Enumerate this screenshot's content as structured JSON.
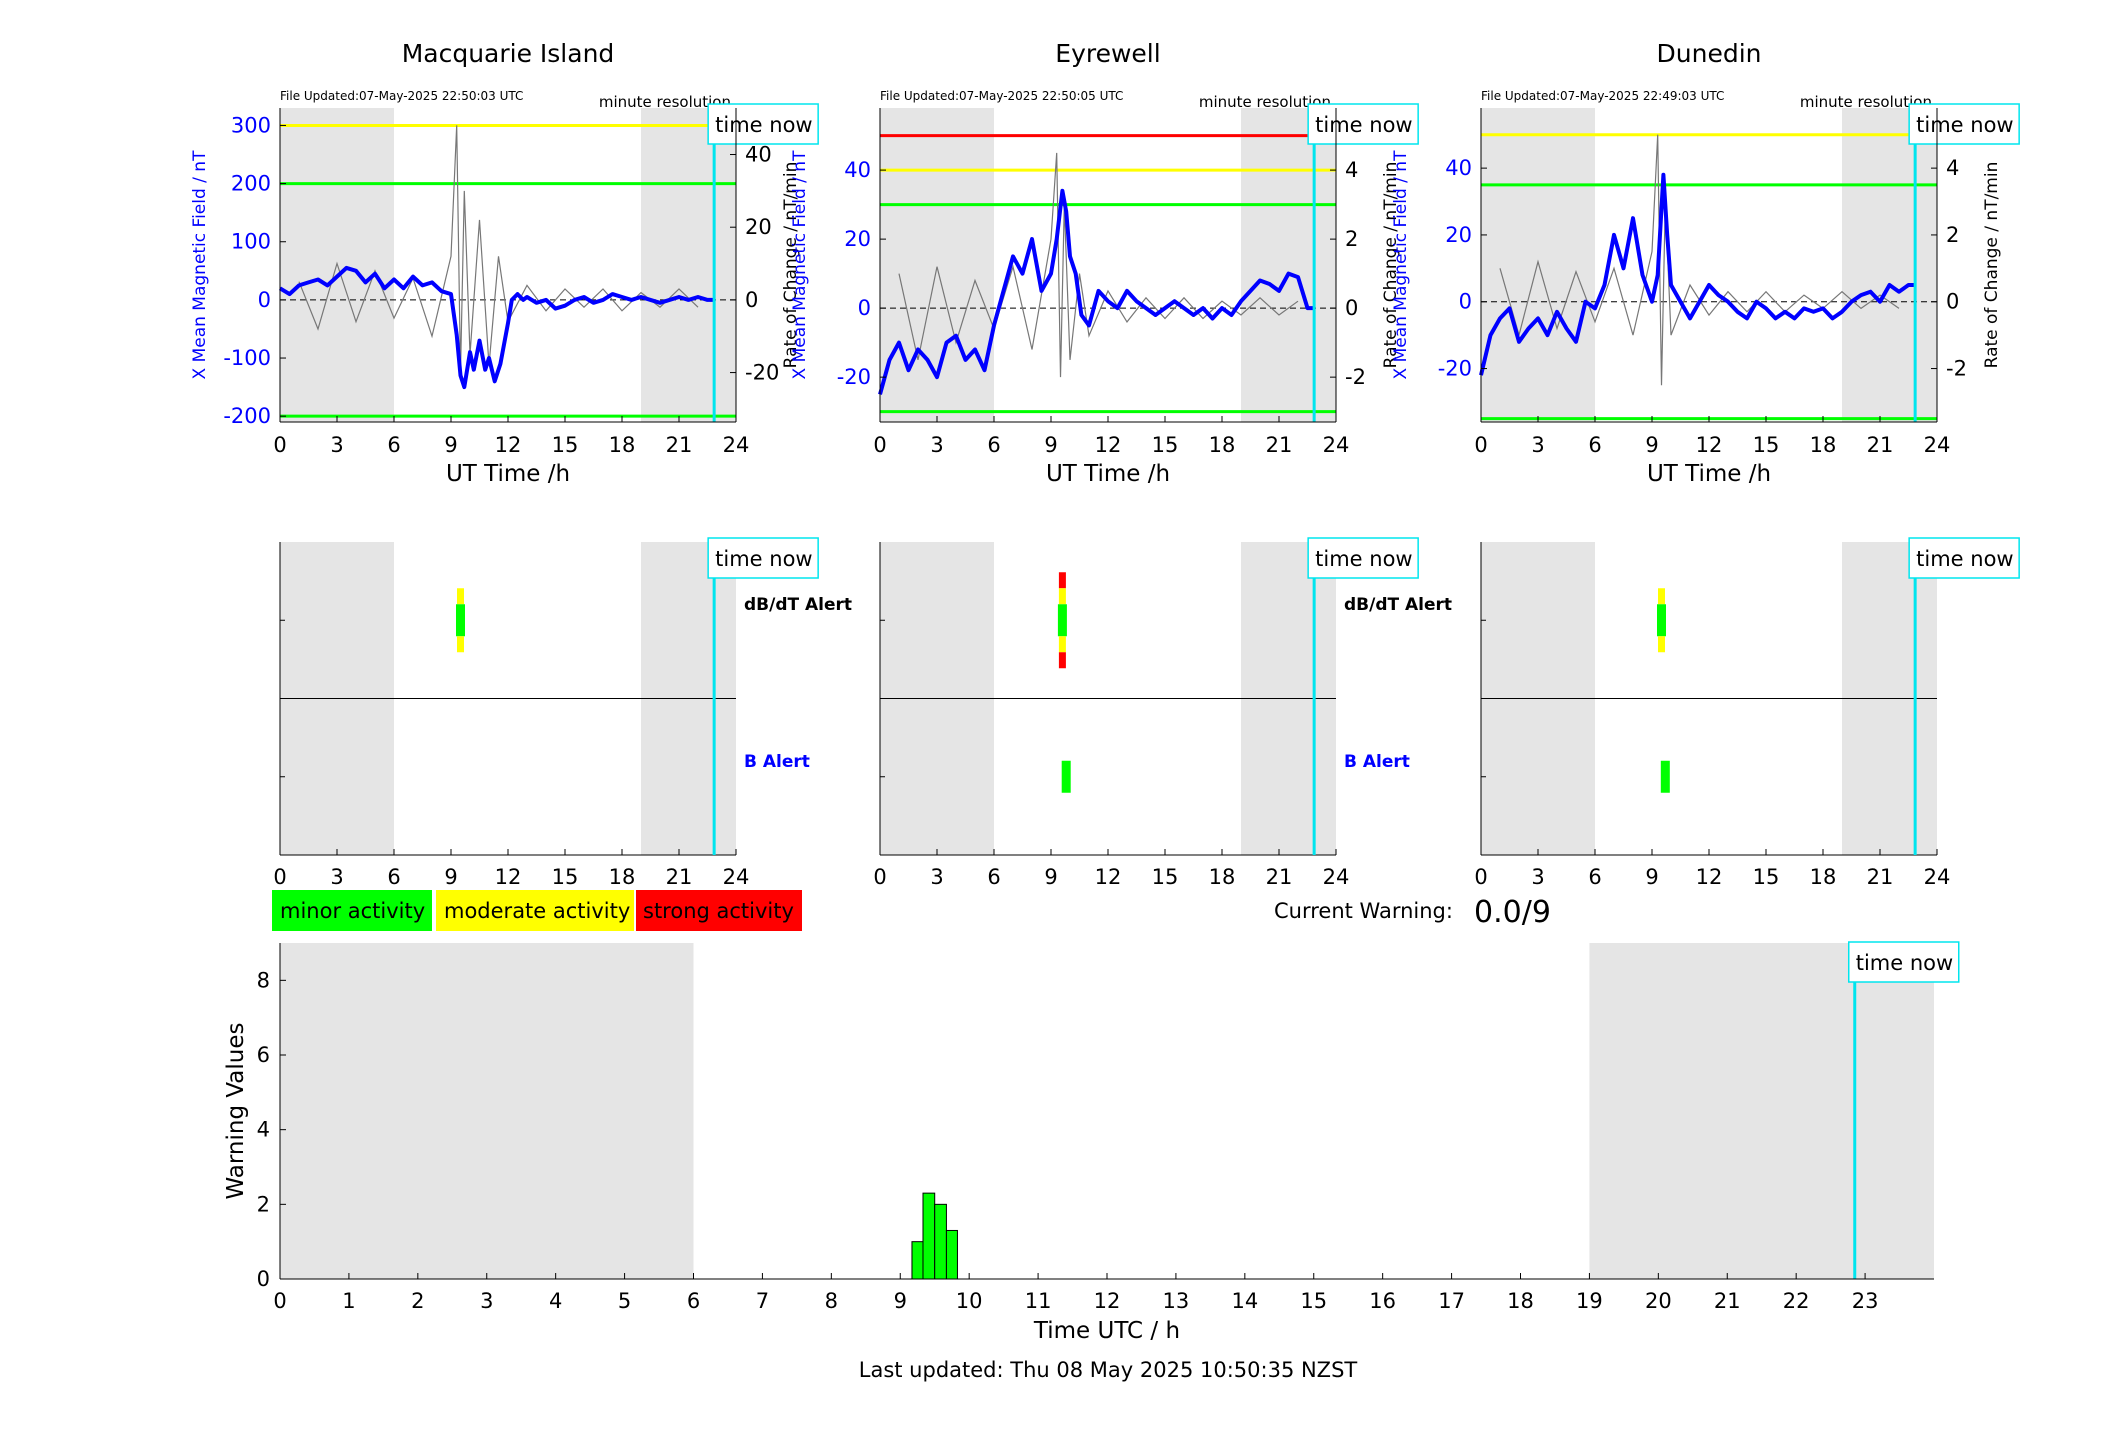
{
  "footer": {
    "last_updated": "Last updated: Thu 08 May 2025 10:50:35 NZST"
  },
  "legend": [
    {
      "label": "minor activity",
      "color": "#00ff00"
    },
    {
      "label": "moderate activity",
      "color": "#ffff00"
    },
    {
      "label": "strong activity",
      "color": "#ff0000"
    }
  ],
  "current_warning": {
    "label": "Current Warning:",
    "value": "0.0/9"
  },
  "common": {
    "time_now_label": "time now",
    "minute_resolution": "minute resolution",
    "ut_xlabel": "UT Time /h",
    "left_ylabel": "X Mean Magnetic Field / nT",
    "right_ylabel": "Rate of Change / nT/min",
    "dbdt_alert_label": "dB/dT Alert",
    "b_alert_label": "B Alert",
    "x_ticks": [
      0,
      3,
      6,
      9,
      12,
      15,
      18,
      21,
      24
    ],
    "night_shading_hours": [
      [
        0,
        6
      ],
      [
        19,
        24
      ]
    ],
    "time_now_hour": 22.85
  },
  "chart_data": [
    {
      "type": "line",
      "station": "Macquarie Island",
      "file_updated": "File Updated:07-May-2025 22:50:03 UTC",
      "xlim": [
        0,
        24
      ],
      "ylim": [
        -210,
        330
      ],
      "yticks": [
        -200,
        -100,
        0,
        100,
        200,
        300
      ],
      "y2lim": [
        -33.6,
        52.8
      ],
      "y2ticks": [
        -20,
        0,
        20,
        40
      ],
      "thresholds": [
        {
          "value": 300,
          "color": "#ffff00"
        },
        {
          "value": 200,
          "color": "#00ff00"
        },
        {
          "value": -200,
          "color": "#00ff00"
        }
      ],
      "series": [
        {
          "x": [
            0,
            0.5,
            1,
            1.5,
            2,
            2.5,
            3,
            3.5,
            4,
            4.5,
            5,
            5.5,
            6,
            6.5,
            7,
            7.5,
            8,
            8.5,
            9,
            9.3,
            9.5,
            9.7,
            10,
            10.2,
            10.5,
            10.8,
            11,
            11.3,
            11.6,
            12,
            12.2,
            12.5,
            12.8,
            13,
            13.5,
            14,
            14.5,
            15,
            15.5,
            16,
            16.5,
            17,
            17.5,
            18,
            18.5,
            19,
            19.5,
            20,
            20.5,
            21,
            21.5,
            22,
            22.5,
            22.85
          ],
          "values": [
            20,
            10,
            25,
            30,
            35,
            25,
            40,
            55,
            50,
            30,
            45,
            20,
            35,
            20,
            40,
            25,
            30,
            15,
            10,
            -60,
            -130,
            -150,
            -90,
            -120,
            -70,
            -120,
            -100,
            -140,
            -110,
            -40,
            0,
            10,
            0,
            5,
            -5,
            0,
            -15,
            -10,
            0,
            5,
            -5,
            0,
            10,
            5,
            0,
            5,
            0,
            -5,
            0,
            5,
            0,
            5,
            0,
            0
          ]
        },
        {
          "x": [
            1,
            2,
            3,
            4,
            5,
            6,
            7,
            8,
            9,
            9.3,
            9.5,
            9.7,
            10,
            10.5,
            11,
            11.5,
            12,
            13,
            14,
            15,
            16,
            17,
            18,
            19,
            20,
            21,
            22
          ],
          "values": [
            5,
            -8,
            10,
            -6,
            8,
            -5,
            6,
            -10,
            12,
            48,
            -20,
            30,
            -15,
            22,
            -18,
            12,
            -6,
            4,
            -3,
            3,
            -2,
            3,
            -3,
            2,
            -2,
            3,
            -2
          ]
        }
      ],
      "dbdt_alert": {
        "x": 9.5,
        "levels": [
          "moderate",
          "minor",
          "moderate"
        ]
      },
      "b_alert": null
    },
    {
      "type": "line",
      "station": "Eyrewell",
      "file_updated": "File Updated:07-May-2025 22:50:05 UTC",
      "xlim": [
        0,
        24
      ],
      "ylim": [
        -33,
        58
      ],
      "yticks": [
        -20,
        0,
        20,
        40
      ],
      "y2lim": [
        -3.3,
        5.8
      ],
      "y2ticks": [
        -2,
        0,
        2,
        4
      ],
      "thresholds": [
        {
          "value": 50,
          "color": "#ff0000"
        },
        {
          "value": 40,
          "color": "#ffff00"
        },
        {
          "value": 30,
          "color": "#00ff00"
        },
        {
          "value": -30,
          "color": "#00ff00"
        }
      ],
      "series": [
        {
          "x": [
            0,
            0.5,
            1,
            1.5,
            2,
            2.5,
            3,
            3.5,
            4,
            4.5,
            5,
            5.5,
            6,
            6.5,
            7,
            7.5,
            8,
            8.5,
            9,
            9.3,
            9.6,
            9.8,
            10,
            10.3,
            10.6,
            11,
            11.5,
            12,
            12.5,
            13,
            13.5,
            14,
            14.5,
            15,
            15.5,
            16,
            16.5,
            17,
            17.5,
            18,
            18.5,
            19,
            19.5,
            20,
            20.5,
            21,
            21.5,
            22,
            22.5,
            22.85
          ],
          "values": [
            -25,
            -15,
            -10,
            -18,
            -12,
            -15,
            -20,
            -10,
            -8,
            -15,
            -12,
            -18,
            -5,
            5,
            15,
            10,
            20,
            5,
            10,
            20,
            34,
            28,
            15,
            10,
            -2,
            -5,
            5,
            2,
            0,
            5,
            2,
            0,
            -2,
            0,
            2,
            0,
            -2,
            0,
            -3,
            0,
            -2,
            2,
            5,
            8,
            7,
            5,
            10,
            9,
            0,
            0
          ]
        },
        {
          "x": [
            1,
            2,
            3,
            4,
            5,
            6,
            7,
            8,
            9,
            9.3,
            9.5,
            9.7,
            10,
            10.5,
            11,
            12,
            13,
            14,
            15,
            16,
            17,
            18,
            19,
            20,
            21,
            22
          ],
          "values": [
            1,
            -1.5,
            1.2,
            -1,
            0.8,
            -0.6,
            1.2,
            -1.2,
            2,
            4.5,
            -2,
            3,
            -1.5,
            1,
            -0.8,
            0.5,
            -0.4,
            0.3,
            -0.3,
            0.3,
            -0.3,
            0.2,
            -0.2,
            0.3,
            -0.2,
            0.2
          ]
        }
      ],
      "dbdt_alert": {
        "x": 9.6,
        "levels": [
          "strong",
          "moderate",
          "minor",
          "moderate",
          "strong"
        ]
      },
      "b_alert": {
        "x": 9.8,
        "levels": [
          "minor"
        ]
      }
    },
    {
      "type": "line",
      "station": "Dunedin",
      "file_updated": "File Updated:07-May-2025 22:49:03 UTC",
      "xlim": [
        0,
        24
      ],
      "ylim": [
        -36,
        58
      ],
      "yticks": [
        -20,
        0,
        20,
        40
      ],
      "y2lim": [
        -3.6,
        5.8
      ],
      "y2ticks": [
        -2,
        0,
        2,
        4
      ],
      "thresholds": [
        {
          "value": 50,
          "color": "#ffff00"
        },
        {
          "value": 35,
          "color": "#00ff00"
        },
        {
          "value": -35,
          "color": "#00ff00"
        }
      ],
      "series": [
        {
          "x": [
            0,
            0.5,
            1,
            1.5,
            2,
            2.5,
            3,
            3.5,
            4,
            4.5,
            5,
            5.5,
            6,
            6.5,
            7,
            7.5,
            8,
            8.5,
            9,
            9.3,
            9.6,
            9.8,
            10,
            10.5,
            11,
            11.5,
            12,
            12.5,
            13,
            13.5,
            14,
            14.5,
            15,
            15.5,
            16,
            16.5,
            17,
            17.5,
            18,
            18.5,
            19,
            19.5,
            20,
            20.5,
            21,
            21.5,
            22,
            22.5,
            22.85
          ],
          "values": [
            -22,
            -10,
            -5,
            -2,
            -12,
            -8,
            -5,
            -10,
            -3,
            -8,
            -12,
            0,
            -2,
            5,
            20,
            10,
            25,
            8,
            0,
            8,
            38,
            20,
            5,
            0,
            -5,
            0,
            5,
            2,
            0,
            -3,
            -5,
            0,
            -2,
            -5,
            -3,
            -5,
            -2,
            -3,
            -2,
            -5,
            -3,
            0,
            2,
            3,
            0,
            5,
            3,
            5,
            5
          ]
        },
        {
          "x": [
            1,
            2,
            3,
            4,
            5,
            6,
            7,
            8,
            9,
            9.3,
            9.5,
            9.7,
            10,
            11,
            12,
            13,
            14,
            15,
            16,
            17,
            18,
            19,
            20,
            21,
            22
          ],
          "values": [
            1,
            -1,
            1.2,
            -0.8,
            0.9,
            -0.6,
            1,
            -1,
            1.5,
            5,
            -2.5,
            3,
            -1,
            0.5,
            -0.4,
            0.3,
            -0.3,
            0.3,
            -0.3,
            0.2,
            -0.2,
            0.3,
            -0.2,
            0.2,
            -0.2
          ]
        }
      ],
      "dbdt_alert": {
        "x": 9.5,
        "levels": [
          "moderate",
          "minor",
          "moderate"
        ]
      },
      "b_alert": {
        "x": 9.7,
        "levels": [
          "minor"
        ]
      }
    },
    {
      "type": "bar",
      "name": "warning_values",
      "xlabel": "Time UTC / h",
      "ylabel": "Warning Values",
      "xlim": [
        0,
        24
      ],
      "ylim": [
        0,
        9
      ],
      "x_ticks": [
        0,
        1,
        2,
        3,
        4,
        5,
        6,
        7,
        8,
        9,
        10,
        11,
        12,
        13,
        14,
        15,
        16,
        17,
        18,
        19,
        20,
        21,
        22,
        23
      ],
      "y_ticks": [
        0,
        2,
        4,
        6,
        8
      ],
      "bar_color": "#00ff00",
      "bars": [
        {
          "x_start": 9.17,
          "x_end": 9.33,
          "value": 1
        },
        {
          "x_start": 9.33,
          "x_end": 9.5,
          "value": 2.3
        },
        {
          "x_start": 9.5,
          "x_end": 9.67,
          "value": 2
        },
        {
          "x_start": 9.67,
          "x_end": 9.83,
          "value": 1.3
        }
      ],
      "night_shading_hours": [
        [
          0,
          6
        ],
        [
          19,
          24
        ]
      ],
      "time_now_hour": 22.85
    }
  ]
}
